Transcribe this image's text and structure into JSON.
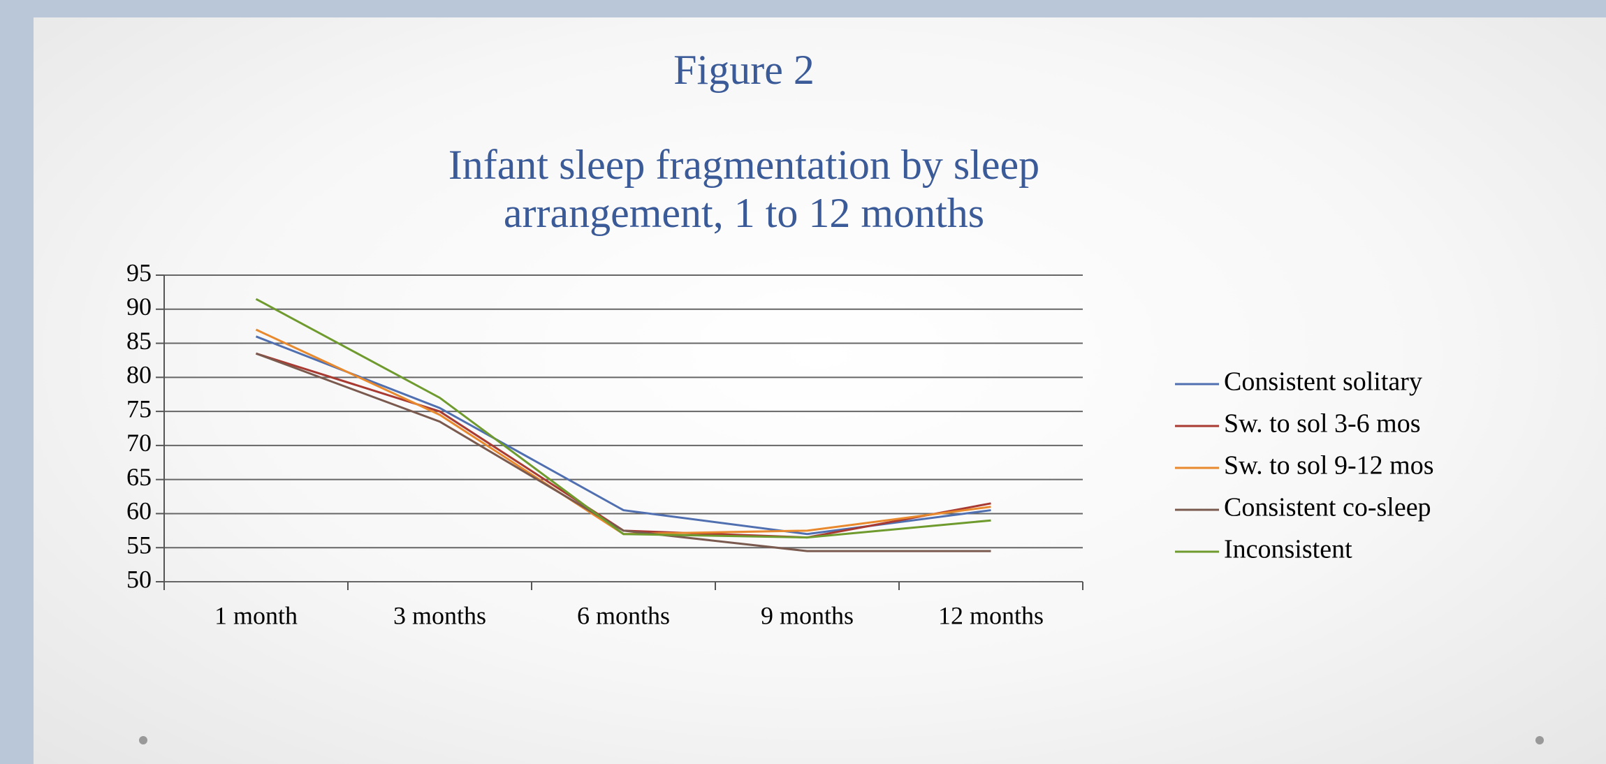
{
  "chart_data": {
    "type": "line",
    "title": "Figure 2",
    "subtitle": [
      "Infant sleep fragmentation  by sleep",
      "arrangement, 1 to 12 months"
    ],
    "categories": [
      "1 month",
      "3 months",
      "6 months",
      "9 months",
      "12 months"
    ],
    "series": [
      {
        "name": "Consistent solitary",
        "color": "#4f6fb0",
        "values": [
          86,
          75.5,
          60.5,
          57,
          60.5
        ]
      },
      {
        "name": "Sw. to sol 3-6 mos",
        "color": "#a83a32",
        "values": [
          83.5,
          75,
          57.5,
          56.5,
          61.5
        ]
      },
      {
        "name": "Sw. to sol 9-12 mos",
        "color": "#e8892e",
        "values": [
          87,
          74.5,
          57,
          57.5,
          61
        ]
      },
      {
        "name": "Consistent co-sleep",
        "color": "#7a5a4e",
        "values": [
          83.5,
          73.5,
          57.5,
          54.5,
          54.5
        ]
      },
      {
        "name": "Inconsistent",
        "color": "#6e9a2e",
        "values": [
          91.5,
          77,
          57,
          56.5,
          59
        ]
      }
    ],
    "ylim": [
      50,
      95
    ],
    "yticks": [
      50,
      55,
      60,
      65,
      70,
      75,
      80,
      85,
      90,
      95
    ],
    "grid": true,
    "legend": "right"
  }
}
